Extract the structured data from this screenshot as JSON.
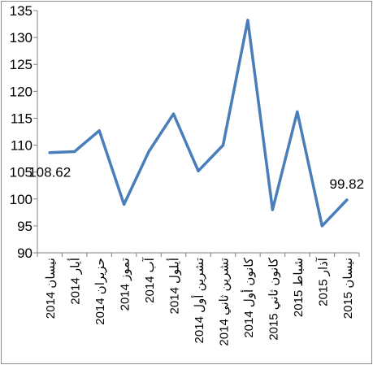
{
  "chart_data": {
    "type": "line",
    "title": "",
    "xlabel": "",
    "ylabel": "",
    "ylim": [
      90,
      135
    ],
    "yticks": [
      90,
      95,
      100,
      105,
      110,
      115,
      120,
      125,
      130,
      135
    ],
    "grid": false,
    "legend": "none",
    "line_color": "#4a7ebb",
    "categories": [
      "نيسان 2014",
      "أيار 2014",
      "حزيران 2014",
      "تموز 2014",
      "آب 2014",
      "أيلول 2014",
      "تشرين أول 2014",
      "تشرين ثاني 2014",
      "كانون أول 2014",
      "كانون ثاني 2015",
      "شباط 2015",
      "آذار 2015",
      "نيسان 2015"
    ],
    "series": [
      {
        "values": [
          108.62,
          108.8,
          112.7,
          99.0,
          108.8,
          115.8,
          105.2,
          110.0,
          133.2,
          98.0,
          116.2,
          95.0,
          99.82
        ]
      }
    ],
    "data_labels": [
      {
        "index": 0,
        "text": "108.62"
      },
      {
        "index": 12,
        "text": "99.82"
      }
    ]
  }
}
